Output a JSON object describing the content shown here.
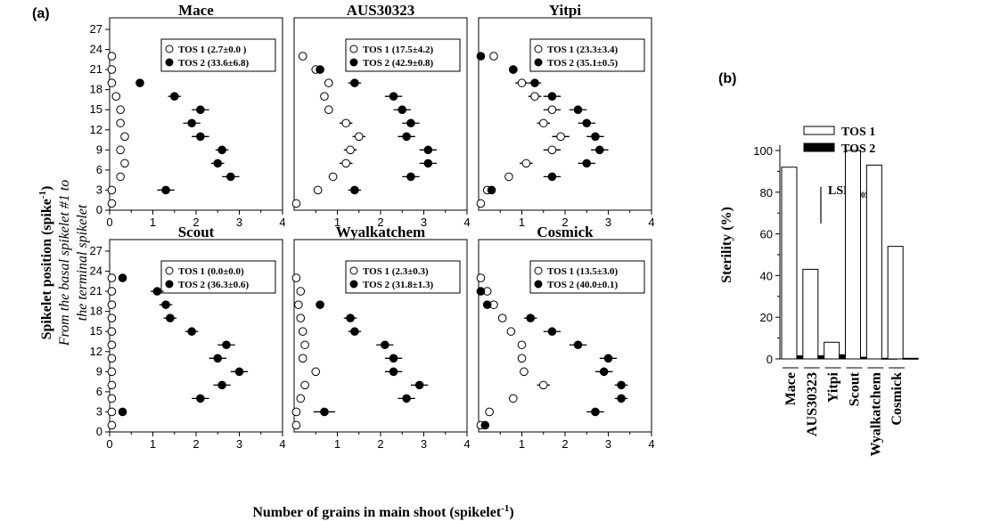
{
  "panel_a_label": "(a)",
  "panel_b_label": "(b)",
  "ylabel_main": "Spikelet position (spike",
  "ylabel_sup": "-1",
  "ylabel_close": ")",
  "ylabel_line2": "From the basal spikelet #1 to",
  "ylabel_line3": "the terminal spikelet",
  "xlabel_main": "Number of grains in main shoot (spikelet",
  "xlabel_sup": "-1",
  "xlabel_close": ")",
  "b_ylabel": "Sterility (%)",
  "lsd_main": "LSD",
  "lsd_sub": "(0.05)",
  "chart_data": [
    {
      "type": "scatter",
      "title": "Mace",
      "xlim": [
        0,
        4
      ],
      "ylim": [
        0,
        27
      ],
      "xticks": [
        0,
        1,
        2,
        3,
        4
      ],
      "yticks": [
        0,
        3,
        6,
        9,
        12,
        15,
        18,
        21,
        24,
        27
      ],
      "series": [
        {
          "name": "TOS 1 (2.7±0.0 )",
          "marker": "open-circle",
          "points": [
            {
              "y": 1,
              "x": 0.05
            },
            {
              "y": 3,
              "x": 0.05
            },
            {
              "y": 5,
              "x": 0.25
            },
            {
              "y": 7,
              "x": 0.35
            },
            {
              "y": 9,
              "x": 0.25
            },
            {
              "y": 11,
              "x": 0.35
            },
            {
              "y": 13,
              "x": 0.25
            },
            {
              "y": 15,
              "x": 0.25
            },
            {
              "y": 17,
              "x": 0.15
            },
            {
              "y": 19,
              "x": 0.05
            },
            {
              "y": 21,
              "x": 0.05
            },
            {
              "y": 23,
              "x": 0.05
            }
          ]
        },
        {
          "name": "TOS 2 (33.6±6.8)",
          "marker": "filled-circle",
          "points": [
            {
              "y": 3,
              "x": 1.3,
              "err": 0.2
            },
            {
              "y": 5,
              "x": 2.8,
              "err": 0.2
            },
            {
              "y": 7,
              "x": 2.5,
              "err": 0.15
            },
            {
              "y": 9,
              "x": 2.6,
              "err": 0.15
            },
            {
              "y": 11,
              "x": 2.1,
              "err": 0.2
            },
            {
              "y": 13,
              "x": 1.9,
              "err": 0.2
            },
            {
              "y": 15,
              "x": 2.1,
              "err": 0.2
            },
            {
              "y": 17,
              "x": 1.5,
              "err": 0.15
            },
            {
              "y": 19,
              "x": 0.7
            }
          ]
        }
      ]
    },
    {
      "type": "scatter",
      "title": "AUS30323",
      "xlim": [
        0,
        4
      ],
      "ylim": [
        0,
        27
      ],
      "xticks": [
        1,
        2,
        3,
        4
      ],
      "yticks": [],
      "series": [
        {
          "name": "TOS 1 (17.5±4.2)",
          "marker": "open-circle",
          "points": [
            {
              "y": 1,
              "x": 0.05
            },
            {
              "y": 3,
              "x": 0.55,
              "err": 0.1
            },
            {
              "y": 5,
              "x": 0.9,
              "err": 0.1
            },
            {
              "y": 7,
              "x": 1.2,
              "err": 0.15
            },
            {
              "y": 9,
              "x": 1.3,
              "err": 0.15
            },
            {
              "y": 11,
              "x": 1.5,
              "err": 0.15
            },
            {
              "y": 13,
              "x": 1.2,
              "err": 0.15
            },
            {
              "y": 15,
              "x": 0.8
            },
            {
              "y": 17,
              "x": 0.7
            },
            {
              "y": 19,
              "x": 0.8,
              "err": 0.1
            },
            {
              "y": 21,
              "x": 0.5
            },
            {
              "y": 23,
              "x": 0.2
            }
          ]
        },
        {
          "name": "TOS 2 (42.9±0.8)",
          "marker": "filled-circle",
          "points": [
            {
              "y": 3,
              "x": 1.4,
              "err": 0.15
            },
            {
              "y": 5,
              "x": 2.7,
              "err": 0.2
            },
            {
              "y": 7,
              "x": 3.1,
              "err": 0.2
            },
            {
              "y": 9,
              "x": 3.1,
              "err": 0.2
            },
            {
              "y": 11,
              "x": 2.6,
              "err": 0.2
            },
            {
              "y": 13,
              "x": 2.7,
              "err": 0.2
            },
            {
              "y": 15,
              "x": 2.5,
              "err": 0.2
            },
            {
              "y": 17,
              "x": 2.3,
              "err": 0.2
            },
            {
              "y": 19,
              "x": 1.4,
              "err": 0.15
            },
            {
              "y": 21,
              "x": 0.6
            }
          ]
        }
      ]
    },
    {
      "type": "scatter",
      "title": "Yitpi",
      "xlim": [
        0,
        4
      ],
      "ylim": [
        0,
        27
      ],
      "xticks": [
        1,
        2,
        3,
        4
      ],
      "yticks": [],
      "series": [
        {
          "name": "TOS 1 (23.3±3.4)",
          "marker": "open-circle",
          "points": [
            {
              "y": 1,
              "x": 0.05
            },
            {
              "y": 3,
              "x": 0.2
            },
            {
              "y": 5,
              "x": 0.7
            },
            {
              "y": 7,
              "x": 1.1,
              "err": 0.15
            },
            {
              "y": 9,
              "x": 1.7,
              "err": 0.2
            },
            {
              "y": 11,
              "x": 1.9,
              "err": 0.2
            },
            {
              "y": 13,
              "x": 1.5,
              "err": 0.15
            },
            {
              "y": 15,
              "x": 1.7,
              "err": 0.2
            },
            {
              "y": 17,
              "x": 1.3,
              "err": 0.15
            },
            {
              "y": 19,
              "x": 1.0,
              "err": 0.15
            },
            {
              "y": 21,
              "x": 0.8,
              "err": 0.1
            },
            {
              "y": 23,
              "x": 0.35
            }
          ]
        },
        {
          "name": "TOS 2 (35.1±0.5)",
          "marker": "filled-circle",
          "points": [
            {
              "y": 3,
              "x": 0.3
            },
            {
              "y": 5,
              "x": 1.7,
              "err": 0.2
            },
            {
              "y": 7,
              "x": 2.5,
              "err": 0.2
            },
            {
              "y": 9,
              "x": 2.8,
              "err": 0.2
            },
            {
              "y": 11,
              "x": 2.7,
              "err": 0.2
            },
            {
              "y": 13,
              "x": 2.5,
              "err": 0.2
            },
            {
              "y": 15,
              "x": 2.3,
              "err": 0.2
            },
            {
              "y": 17,
              "x": 1.7,
              "err": 0.2
            },
            {
              "y": 19,
              "x": 1.3,
              "err": 0.15
            },
            {
              "y": 21,
              "x": 0.8
            },
            {
              "y": 23,
              "x": 0.05
            }
          ]
        }
      ]
    },
    {
      "type": "scatter",
      "title": "Scout",
      "xlim": [
        0,
        4
      ],
      "ylim": [
        0,
        27
      ],
      "xticks": [
        0,
        1,
        2,
        3,
        4
      ],
      "yticks": [
        0,
        3,
        6,
        9,
        12,
        15,
        18,
        21,
        24,
        27
      ],
      "series": [
        {
          "name": "TOS 1 (0.0±0.0)",
          "marker": "open-circle",
          "points": [
            {
              "y": 1,
              "x": 0.05
            },
            {
              "y": 3,
              "x": 0.05
            },
            {
              "y": 5,
              "x": 0.05
            },
            {
              "y": 7,
              "x": 0.05
            },
            {
              "y": 9,
              "x": 0.05
            },
            {
              "y": 11,
              "x": 0.05
            },
            {
              "y": 13,
              "x": 0.05
            },
            {
              "y": 15,
              "x": 0.05
            },
            {
              "y": 17,
              "x": 0.05
            },
            {
              "y": 19,
              "x": 0.05
            },
            {
              "y": 21,
              "x": 0.05
            },
            {
              "y": 23,
              "x": 0.05
            }
          ]
        },
        {
          "name": "TOS 2 (36.3±0.6)",
          "marker": "filled-circle",
          "points": [
            {
              "y": 3,
              "x": 0.3
            },
            {
              "y": 5,
              "x": 2.1,
              "err": 0.2
            },
            {
              "y": 7,
              "x": 2.6,
              "err": 0.2
            },
            {
              "y": 9,
              "x": 3.0,
              "err": 0.2
            },
            {
              "y": 11,
              "x": 2.5,
              "err": 0.2
            },
            {
              "y": 13,
              "x": 2.7,
              "err": 0.2
            },
            {
              "y": 15,
              "x": 1.9,
              "err": 0.15
            },
            {
              "y": 17,
              "x": 1.4,
              "err": 0.15
            },
            {
              "y": 19,
              "x": 1.3,
              "err": 0.15
            },
            {
              "y": 21,
              "x": 1.1,
              "err": 0.15
            },
            {
              "y": 23,
              "x": 0.3
            }
          ]
        }
      ]
    },
    {
      "type": "scatter",
      "title": "Wyalkatchem",
      "xlim": [
        0,
        4
      ],
      "ylim": [
        0,
        27
      ],
      "xticks": [
        1,
        2,
        3,
        4
      ],
      "yticks": [],
      "series": [
        {
          "name": "TOS 1 (2.3±0.3)",
          "marker": "open-circle",
          "points": [
            {
              "y": 1,
              "x": 0.05
            },
            {
              "y": 3,
              "x": 0.05
            },
            {
              "y": 5,
              "x": 0.15
            },
            {
              "y": 7,
              "x": 0.25,
              "err": 0.1
            },
            {
              "y": 9,
              "x": 0.5,
              "err": 0.1
            },
            {
              "y": 11,
              "x": 0.2
            },
            {
              "y": 13,
              "x": 0.25
            },
            {
              "y": 15,
              "x": 0.2
            },
            {
              "y": 17,
              "x": 0.15
            },
            {
              "y": 19,
              "x": 0.1
            },
            {
              "y": 21,
              "x": 0.15
            },
            {
              "y": 23,
              "x": 0.05
            }
          ]
        },
        {
          "name": "TOS 2 (31.8±1.3)",
          "marker": "filled-circle",
          "points": [
            {
              "y": 3,
              "x": 0.7,
              "err": 0.25
            },
            {
              "y": 5,
              "x": 2.6,
              "err": 0.2
            },
            {
              "y": 7,
              "x": 2.9,
              "err": 0.2
            },
            {
              "y": 9,
              "x": 2.3,
              "err": 0.2
            },
            {
              "y": 11,
              "x": 2.3,
              "err": 0.2
            },
            {
              "y": 13,
              "x": 2.1,
              "err": 0.2
            },
            {
              "y": 15,
              "x": 1.4,
              "err": 0.15
            },
            {
              "y": 17,
              "x": 1.3,
              "err": 0.15
            },
            {
              "y": 19,
              "x": 0.6
            }
          ]
        }
      ]
    },
    {
      "type": "scatter",
      "title": "Cosmick",
      "xlim": [
        0,
        4
      ],
      "ylim": [
        0,
        27
      ],
      "xticks": [
        1,
        2,
        3,
        4
      ],
      "yticks": [],
      "series": [
        {
          "name": "TOS 1 (13.5±3.0)",
          "marker": "open-circle",
          "points": [
            {
              "y": 1,
              "x": 0.05
            },
            {
              "y": 3,
              "x": 0.25
            },
            {
              "y": 5,
              "x": 0.8,
              "err": 0.1
            },
            {
              "y": 7,
              "x": 1.5,
              "err": 0.15
            },
            {
              "y": 9,
              "x": 1.05,
              "err": 0.1
            },
            {
              "y": 11,
              "x": 1.0
            },
            {
              "y": 13,
              "x": 1.0
            },
            {
              "y": 15,
              "x": 0.75
            },
            {
              "y": 17,
              "x": 0.55
            },
            {
              "y": 19,
              "x": 0.35
            },
            {
              "y": 21,
              "x": 0.2
            },
            {
              "y": 23,
              "x": 0.05
            }
          ]
        },
        {
          "name": "TOS 2 (40.0±0.1)",
          "marker": "filled-circle",
          "points": [
            {
              "y": 1,
              "x": 0.15
            },
            {
              "y": 3,
              "x": 2.7,
              "err": 0.2
            },
            {
              "y": 5,
              "x": 3.3,
              "err": 0.15
            },
            {
              "y": 7,
              "x": 3.3,
              "err": 0.15
            },
            {
              "y": 9,
              "x": 2.9,
              "err": 0.2
            },
            {
              "y": 11,
              "x": 3.0,
              "err": 0.2
            },
            {
              "y": 13,
              "x": 2.3,
              "err": 0.2
            },
            {
              "y": 15,
              "x": 1.7,
              "err": 0.2
            },
            {
              "y": 17,
              "x": 1.2,
              "err": 0.15
            },
            {
              "y": 19,
              "x": 0.2
            },
            {
              "y": 21,
              "x": 0.05
            }
          ]
        }
      ]
    },
    {
      "type": "bar",
      "categories": [
        "Mace",
        "AUS30323",
        "Yitpi",
        "Scout",
        "Wyalkatchem",
        "Cosmick"
      ],
      "series": [
        {
          "name": "TOS 1",
          "fill": "#ffffff",
          "values": [
            92,
            43,
            8,
            100,
            93,
            54
          ]
        },
        {
          "name": "TOS 2",
          "fill": "#000000",
          "values": [
            1.5,
            1.5,
            2.0,
            0.8,
            0.3,
            0.3
          ]
        }
      ],
      "ylabel": "Sterility (%)",
      "ylim": [
        0,
        100
      ],
      "yticks": [
        0,
        20,
        40,
        60,
        80,
        100
      ],
      "lsd": 15,
      "legend_position": "top-left"
    }
  ]
}
